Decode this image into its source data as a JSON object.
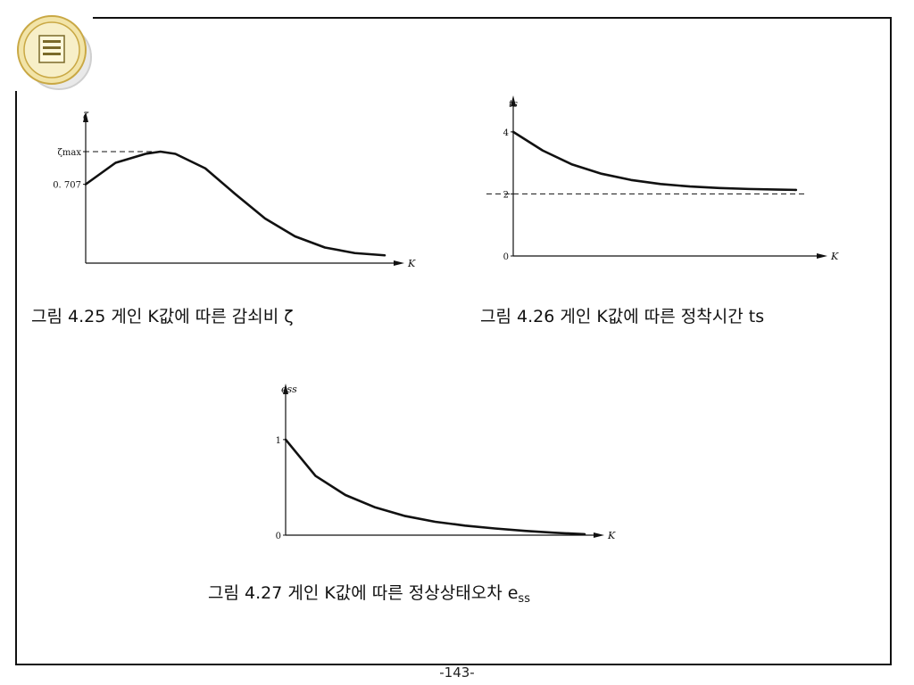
{
  "chart_data": [
    {
      "type": "line",
      "caption": "그림 4.25 게인 K값에 따른 감쇠비 ζ",
      "ylabel": "ζ",
      "xlabel": "K",
      "yticks": [
        {
          "label": "0. 707",
          "value": 0.707
        },
        {
          "label": "ζmax",
          "value": 1.0
        }
      ],
      "ylim": [
        0,
        1.2
      ],
      "xlim": [
        0,
        10
      ],
      "series": [
        {
          "x": [
            0,
            1,
            2,
            2.5,
            3,
            4,
            5,
            6,
            7,
            8,
            9,
            10
          ],
          "y": [
            0.707,
            0.9,
            0.98,
            1.0,
            0.98,
            0.85,
            0.62,
            0.4,
            0.24,
            0.14,
            0.09,
            0.07
          ]
        }
      ],
      "reference_lines": [
        {
          "axis": "y",
          "value": 1.0,
          "style": "dashed"
        }
      ]
    },
    {
      "type": "line",
      "caption": "그림 4.26 게인 K값에 따른 정착시간 ts",
      "ylabel": "ts",
      "xlabel": "K",
      "yticks": [
        {
          "label": "0",
          "value": 0
        },
        {
          "label": "2",
          "value": 2
        },
        {
          "label": "4",
          "value": 4
        }
      ],
      "ylim": [
        0,
        4.6
      ],
      "xlim": [
        0,
        10
      ],
      "series": [
        {
          "x": [
            0,
            1,
            2,
            3,
            4,
            5,
            6,
            7,
            8,
            9,
            9.6
          ],
          "y": [
            4.0,
            3.4,
            2.95,
            2.65,
            2.45,
            2.32,
            2.24,
            2.19,
            2.16,
            2.14,
            2.13
          ]
        }
      ],
      "reference_lines": [
        {
          "axis": "y",
          "value": 2.0,
          "style": "dashed"
        }
      ]
    },
    {
      "type": "line",
      "caption": "그림 4.27 게인 K값에 따른 정상상태오차 e",
      "caption_sub": "ss",
      "ylabel": "ess",
      "xlabel": "K",
      "yticks": [
        {
          "label": "0",
          "value": 0
        },
        {
          "label": "1",
          "value": 1
        }
      ],
      "ylim": [
        0,
        1.4
      ],
      "xlim": [
        0,
        10
      ],
      "series": [
        {
          "x": [
            0,
            1,
            2,
            3,
            4,
            5,
            6,
            7,
            8,
            9,
            10
          ],
          "y": [
            1.0,
            0.62,
            0.42,
            0.29,
            0.2,
            0.14,
            0.1,
            0.07,
            0.045,
            0.025,
            0.01
          ]
        }
      ],
      "reference_lines": []
    }
  ],
  "page": {
    "page_number": "-143-"
  }
}
